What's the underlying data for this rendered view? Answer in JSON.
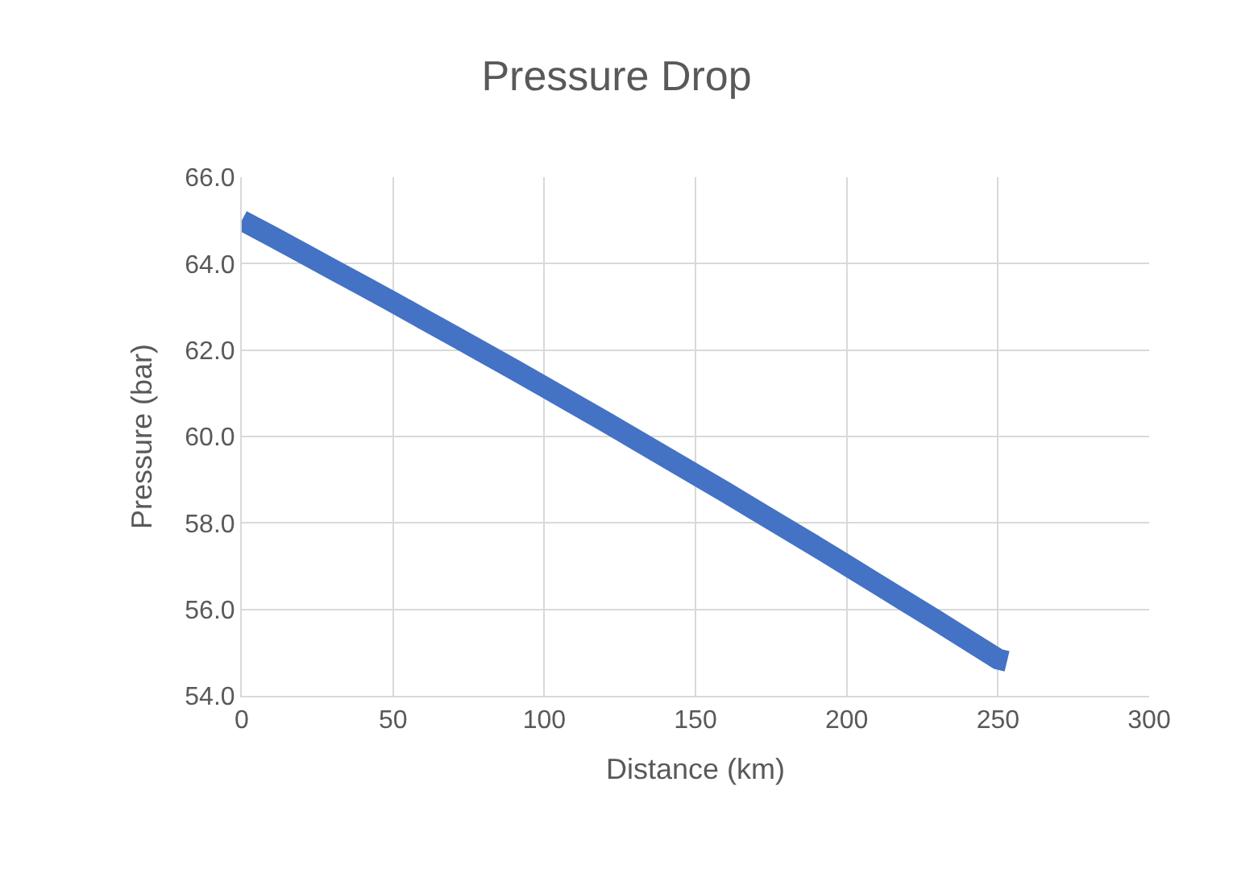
{
  "chart_data": {
    "type": "line",
    "title": "Pressure Drop",
    "xlabel": "Distance (km)",
    "ylabel": "Pressure (bar)",
    "x": [
      0,
      10,
      20,
      30,
      40,
      50,
      60,
      70,
      80,
      90,
      100,
      110,
      120,
      130,
      140,
      150,
      160,
      170,
      180,
      190,
      200,
      210,
      220,
      230,
      240,
      250,
      253
    ],
    "series": [
      {
        "color": "#4472c4",
        "values": [
          65.0,
          64.63,
          64.25,
          63.87,
          63.49,
          63.11,
          62.72,
          62.33,
          61.94,
          61.55,
          61.15,
          60.75,
          60.35,
          59.94,
          59.53,
          59.12,
          58.71,
          58.29,
          57.87,
          57.45,
          57.02,
          56.59,
          56.16,
          55.73,
          55.29,
          54.85,
          54.8
        ]
      }
    ],
    "xlim": [
      0,
      300
    ],
    "xticks": [
      0,
      50,
      100,
      150,
      200,
      250,
      300
    ],
    "ylim": [
      54,
      66
    ],
    "yticks": [
      {
        "value": 54,
        "label": "54.0"
      },
      {
        "value": 56,
        "label": "56.0"
      },
      {
        "value": 58,
        "label": "58.0"
      },
      {
        "value": 60,
        "label": "60.0"
      },
      {
        "value": 62,
        "label": "62.0"
      },
      {
        "value": 64,
        "label": "64.0"
      },
      {
        "value": 66,
        "label": "66.0"
      }
    ],
    "grid": true,
    "legend": false,
    "marker": "none",
    "line_style": "solid"
  }
}
